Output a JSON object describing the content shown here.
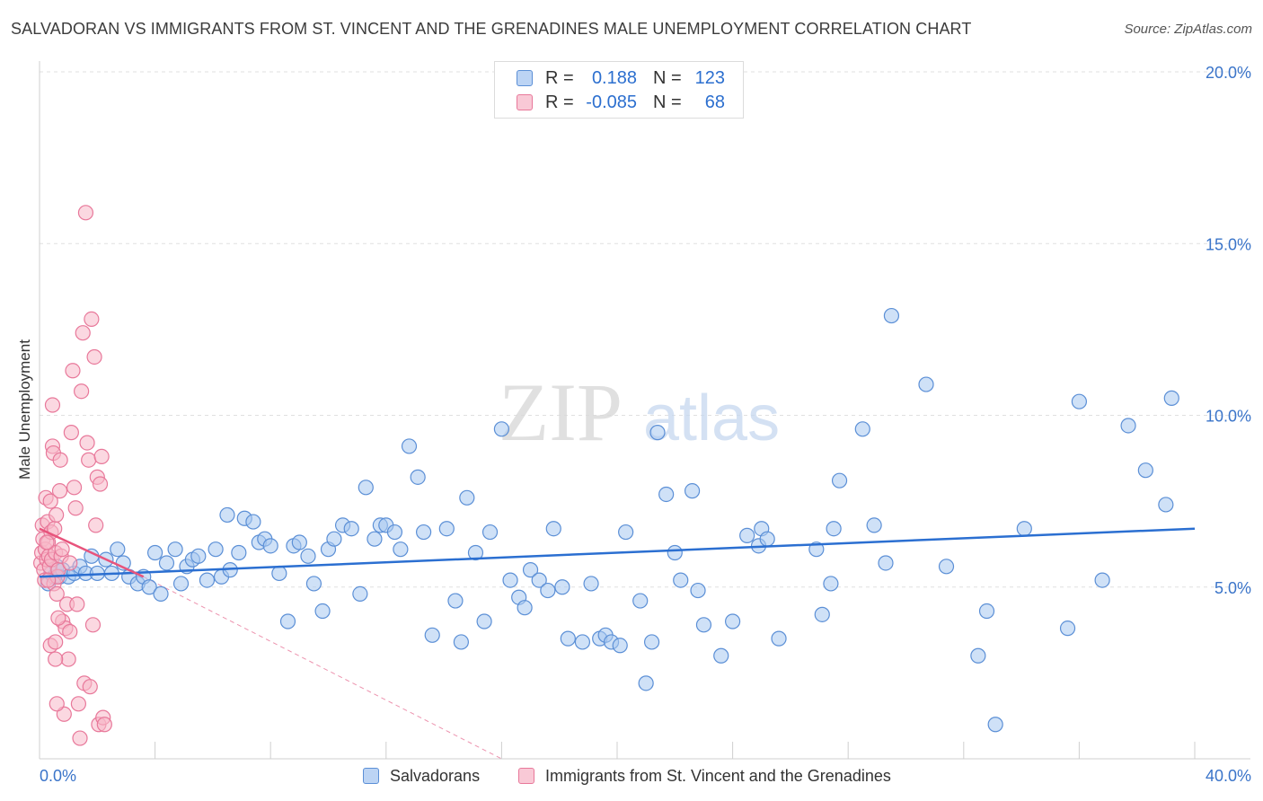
{
  "title": "SALVADORAN VS IMMIGRANTS FROM ST. VINCENT AND THE GRENADINES MALE UNEMPLOYMENT CORRELATION CHART",
  "source": "Source: ZipAtlas.com",
  "watermark": "ZIPatlas",
  "legend": {
    "rows": [
      {
        "r_label": "R =",
        "r_value": "0.188",
        "n_label": "N =",
        "n_value": "123"
      },
      {
        "r_label": "R =",
        "r_value": "-0.085",
        "n_label": "N =",
        "n_value": "68"
      }
    ]
  },
  "bottom_legend": {
    "series1": "Salvadorans",
    "series2": "Immigrants from St. Vincent and the Grenadines"
  },
  "colors": {
    "blue_fill": "#a8c8f0",
    "blue_stroke": "#5b8fd6",
    "blue_line": "#2b6fd1",
    "pink_fill": "#f7b8c8",
    "pink_stroke": "#e8789a",
    "pink_line": "#e8547c",
    "grid": "#e0e0e0",
    "tick_label": "#3a74c9"
  },
  "chart_data": {
    "type": "scatter",
    "title": "SALVADORAN VS IMMIGRANTS FROM ST. VINCENT AND THE GRENADINES MALE UNEMPLOYMENT CORRELATION CHART",
    "xlabel": "",
    "ylabel": "Male Unemployment",
    "xlim": [
      0,
      40
    ],
    "ylim": [
      0,
      20
    ],
    "x_tick_labels": [
      "0.0%",
      "40.0%"
    ],
    "y_tick_labels": [
      "5.0%",
      "10.0%",
      "15.0%",
      "20.0%"
    ],
    "y_ticks": [
      5,
      10,
      15,
      20
    ],
    "grid": true,
    "series": [
      {
        "name": "Salvadorans",
        "color": "blue",
        "trend": {
          "x": [
            0,
            40
          ],
          "y": [
            5.3,
            6.7
          ]
        },
        "points": [
          [
            0.3,
            5.1
          ],
          [
            0.4,
            5.4
          ],
          [
            0.5,
            5.3
          ],
          [
            0.6,
            5.6
          ],
          [
            0.7,
            5.3
          ],
          [
            0.8,
            5.5
          ],
          [
            1.0,
            5.3
          ],
          [
            1.2,
            5.4
          ],
          [
            1.4,
            5.6
          ],
          [
            1.6,
            5.4
          ],
          [
            1.8,
            5.9
          ],
          [
            2.0,
            5.4
          ],
          [
            2.3,
            5.8
          ],
          [
            2.5,
            5.4
          ],
          [
            2.7,
            6.1
          ],
          [
            2.9,
            5.7
          ],
          [
            3.1,
            5.3
          ],
          [
            3.4,
            5.1
          ],
          [
            3.6,
            5.3
          ],
          [
            3.8,
            5.0
          ],
          [
            4.0,
            6.0
          ],
          [
            4.2,
            4.8
          ],
          [
            4.4,
            5.7
          ],
          [
            4.7,
            6.1
          ],
          [
            4.9,
            5.1
          ],
          [
            5.1,
            5.6
          ],
          [
            5.3,
            5.8
          ],
          [
            5.5,
            5.9
          ],
          [
            5.8,
            5.2
          ],
          [
            6.1,
            6.1
          ],
          [
            6.3,
            5.3
          ],
          [
            6.5,
            7.1
          ],
          [
            6.6,
            5.5
          ],
          [
            6.9,
            6.0
          ],
          [
            7.1,
            7.0
          ],
          [
            7.4,
            6.9
          ],
          [
            7.6,
            6.3
          ],
          [
            7.8,
            6.4
          ],
          [
            8.0,
            6.2
          ],
          [
            8.3,
            5.4
          ],
          [
            8.6,
            4.0
          ],
          [
            8.8,
            6.2
          ],
          [
            9.0,
            6.3
          ],
          [
            9.3,
            5.9
          ],
          [
            9.5,
            5.1
          ],
          [
            9.8,
            4.3
          ],
          [
            10.0,
            6.1
          ],
          [
            10.2,
            6.4
          ],
          [
            10.5,
            6.8
          ],
          [
            10.8,
            6.7
          ],
          [
            11.1,
            4.8
          ],
          [
            11.3,
            7.9
          ],
          [
            11.6,
            6.4
          ],
          [
            11.8,
            6.8
          ],
          [
            12.0,
            6.8
          ],
          [
            12.3,
            6.6
          ],
          [
            12.5,
            6.1
          ],
          [
            12.8,
            9.1
          ],
          [
            13.1,
            8.2
          ],
          [
            13.3,
            6.6
          ],
          [
            13.6,
            3.6
          ],
          [
            14.1,
            6.7
          ],
          [
            14.4,
            4.6
          ],
          [
            14.6,
            3.4
          ],
          [
            14.8,
            7.6
          ],
          [
            15.1,
            6.0
          ],
          [
            15.4,
            4.0
          ],
          [
            15.6,
            6.6
          ],
          [
            16.0,
            9.6
          ],
          [
            16.3,
            5.2
          ],
          [
            16.6,
            4.7
          ],
          [
            16.8,
            4.4
          ],
          [
            17.0,
            5.5
          ],
          [
            17.3,
            5.2
          ],
          [
            17.6,
            4.9
          ],
          [
            17.8,
            6.7
          ],
          [
            18.1,
            5.0
          ],
          [
            18.3,
            3.5
          ],
          [
            18.8,
            3.4
          ],
          [
            19.1,
            5.1
          ],
          [
            19.4,
            3.5
          ],
          [
            19.6,
            3.6
          ],
          [
            19.8,
            3.4
          ],
          [
            20.1,
            3.3
          ],
          [
            20.3,
            6.6
          ],
          [
            20.8,
            4.6
          ],
          [
            21.0,
            2.2
          ],
          [
            21.2,
            3.4
          ],
          [
            21.4,
            9.5
          ],
          [
            21.7,
            7.7
          ],
          [
            22.0,
            6.0
          ],
          [
            22.2,
            5.2
          ],
          [
            22.6,
            7.8
          ],
          [
            22.8,
            4.9
          ],
          [
            23.0,
            3.9
          ],
          [
            23.6,
            3.0
          ],
          [
            24.0,
            4.0
          ],
          [
            24.5,
            6.5
          ],
          [
            24.9,
            6.2
          ],
          [
            25.0,
            6.7
          ],
          [
            25.2,
            6.4
          ],
          [
            25.6,
            3.5
          ],
          [
            26.9,
            6.1
          ],
          [
            27.1,
            4.2
          ],
          [
            27.4,
            5.1
          ],
          [
            27.5,
            6.7
          ],
          [
            27.7,
            8.1
          ],
          [
            28.5,
            9.6
          ],
          [
            28.9,
            6.8
          ],
          [
            29.3,
            5.7
          ],
          [
            29.5,
            12.9
          ],
          [
            30.7,
            10.9
          ],
          [
            31.4,
            5.6
          ],
          [
            32.5,
            3.0
          ],
          [
            32.8,
            4.3
          ],
          [
            33.1,
            1.0
          ],
          [
            34.1,
            6.7
          ],
          [
            35.6,
            3.8
          ],
          [
            36.0,
            10.4
          ],
          [
            36.8,
            5.2
          ],
          [
            37.7,
            9.7
          ],
          [
            39.2,
            10.5
          ],
          [
            38.3,
            8.4
          ],
          [
            39.0,
            7.4
          ]
        ]
      },
      {
        "name": "Immigrants from St. Vincent and the Grenadines",
        "color": "pink",
        "trend": {
          "x": [
            0,
            3.6
          ],
          "y": [
            6.7,
            5.3
          ]
        },
        "trend_extension": {
          "x": [
            3.6,
            16
          ],
          "y": [
            5.3,
            0.0
          ]
        },
        "points": [
          [
            0.05,
            5.7
          ],
          [
            0.08,
            6.0
          ],
          [
            0.1,
            6.8
          ],
          [
            0.12,
            6.4
          ],
          [
            0.15,
            5.5
          ],
          [
            0.18,
            5.2
          ],
          [
            0.2,
            6.1
          ],
          [
            0.22,
            7.6
          ],
          [
            0.25,
            5.8
          ],
          [
            0.28,
            6.9
          ],
          [
            0.3,
            6.3
          ],
          [
            0.32,
            5.9
          ],
          [
            0.35,
            5.6
          ],
          [
            0.38,
            7.5
          ],
          [
            0.4,
            6.6
          ],
          [
            0.42,
            5.8
          ],
          [
            0.45,
            9.1
          ],
          [
            0.48,
            8.9
          ],
          [
            0.5,
            5.1
          ],
          [
            0.52,
            6.7
          ],
          [
            0.55,
            6.0
          ],
          [
            0.58,
            7.1
          ],
          [
            0.6,
            4.8
          ],
          [
            0.62,
            5.3
          ],
          [
            0.65,
            5.5
          ],
          [
            0.7,
            7.8
          ],
          [
            0.72,
            8.7
          ],
          [
            0.75,
            5.9
          ],
          [
            0.78,
            6.1
          ],
          [
            0.8,
            4.0
          ],
          [
            0.85,
            1.3
          ],
          [
            0.9,
            3.8
          ],
          [
            0.95,
            4.5
          ],
          [
            1.0,
            2.9
          ],
          [
            1.05,
            3.7
          ],
          [
            1.1,
            9.5
          ],
          [
            1.15,
            11.3
          ],
          [
            1.2,
            7.9
          ],
          [
            1.25,
            7.3
          ],
          [
            1.3,
            4.5
          ],
          [
            1.35,
            1.6
          ],
          [
            1.4,
            0.6
          ],
          [
            1.45,
            10.7
          ],
          [
            1.5,
            12.4
          ],
          [
            1.55,
            2.2
          ],
          [
            1.6,
            15.9
          ],
          [
            1.65,
            9.2
          ],
          [
            1.7,
            8.7
          ],
          [
            1.75,
            2.1
          ],
          [
            1.8,
            12.8
          ],
          [
            1.85,
            3.9
          ],
          [
            1.9,
            11.7
          ],
          [
            1.95,
            6.8
          ],
          [
            2.0,
            8.2
          ],
          [
            2.05,
            1.0
          ],
          [
            2.1,
            8.0
          ],
          [
            2.15,
            8.8
          ],
          [
            2.2,
            1.2
          ],
          [
            2.25,
            1.0
          ],
          [
            0.55,
            2.9
          ],
          [
            0.45,
            10.3
          ],
          [
            0.38,
            3.3
          ],
          [
            0.6,
            1.6
          ],
          [
            0.65,
            4.1
          ],
          [
            0.3,
            5.2
          ],
          [
            1.05,
            5.7
          ],
          [
            0.55,
            3.4
          ],
          [
            0.25,
            6.3
          ]
        ]
      }
    ]
  }
}
